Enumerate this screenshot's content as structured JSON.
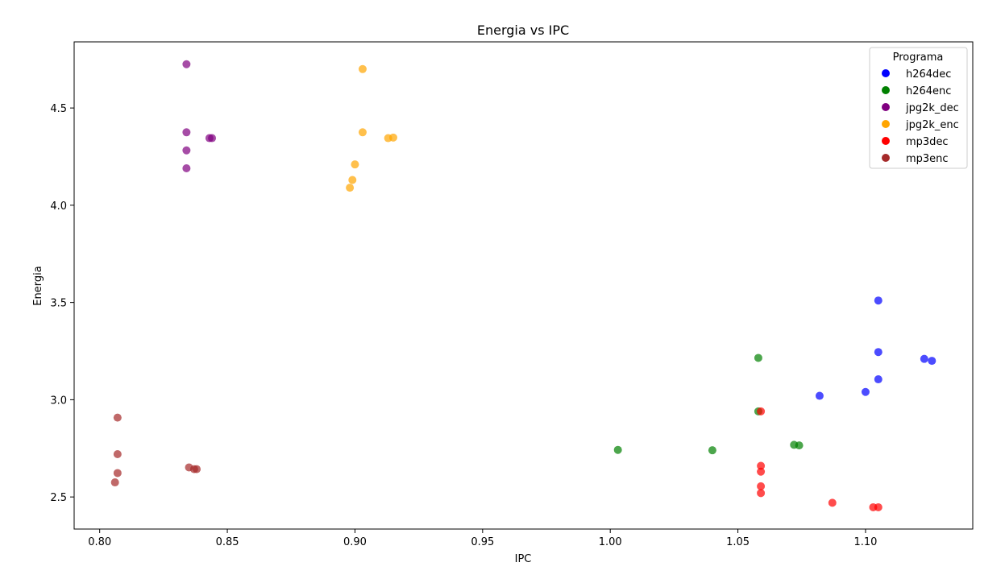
{
  "chart_data": {
    "type": "scatter",
    "title": "Energia vs IPC",
    "xlabel": "IPC",
    "ylabel": "Energia",
    "xlim": [
      0.79,
      1.142
    ],
    "ylim": [
      2.335,
      4.84
    ],
    "xticks": [
      "0.80",
      "0.85",
      "0.90",
      "0.95",
      "1.00",
      "1.05",
      "1.10"
    ],
    "yticks": [
      "2.5",
      "3.0",
      "3.5",
      "4.0",
      "4.5"
    ],
    "grid": false,
    "legend": {
      "title": "Programa",
      "position": "top-right"
    },
    "series": [
      {
        "name": "h264dec",
        "color": "#0000ff",
        "points": [
          [
            1.105,
            3.51
          ],
          [
            1.105,
            3.245
          ],
          [
            1.123,
            3.21
          ],
          [
            1.126,
            3.2
          ],
          [
            1.105,
            3.105
          ],
          [
            1.1,
            3.04
          ],
          [
            1.082,
            3.02
          ]
        ]
      },
      {
        "name": "h264enc",
        "color": "#008000",
        "points": [
          [
            1.058,
            3.215
          ],
          [
            1.058,
            2.94
          ],
          [
            1.072,
            2.768
          ],
          [
            1.074,
            2.765
          ],
          [
            1.003,
            2.742
          ],
          [
            1.04,
            2.74
          ]
        ]
      },
      {
        "name": "jpg2k_dec",
        "color": "#800080",
        "points": [
          [
            0.834,
            4.725
          ],
          [
            0.834,
            4.375
          ],
          [
            0.844,
            4.345
          ],
          [
            0.843,
            4.345
          ],
          [
            0.834,
            4.282
          ],
          [
            0.834,
            4.19
          ]
        ]
      },
      {
        "name": "jpg2k_enc",
        "color": "#ffa500",
        "points": [
          [
            0.903,
            4.7
          ],
          [
            0.903,
            4.375
          ],
          [
            0.913,
            4.345
          ],
          [
            0.915,
            4.348
          ],
          [
            0.9,
            4.21
          ],
          [
            0.899,
            4.13
          ],
          [
            0.898,
            4.09
          ]
        ]
      },
      {
        "name": "mp3dec",
        "color": "#ff0000",
        "points": [
          [
            1.059,
            2.94
          ],
          [
            1.059,
            2.66
          ],
          [
            1.059,
            2.63
          ],
          [
            1.059,
            2.555
          ],
          [
            1.059,
            2.52
          ],
          [
            1.087,
            2.47
          ],
          [
            1.103,
            2.447
          ],
          [
            1.105,
            2.447
          ]
        ]
      },
      {
        "name": "mp3enc",
        "color": "#a52a2a",
        "points": [
          [
            0.807,
            2.908
          ],
          [
            0.807,
            2.72
          ],
          [
            0.807,
            2.623
          ],
          [
            0.806,
            2.575
          ],
          [
            0.835,
            2.652
          ],
          [
            0.837,
            2.643
          ],
          [
            0.838,
            2.643
          ]
        ]
      }
    ]
  }
}
